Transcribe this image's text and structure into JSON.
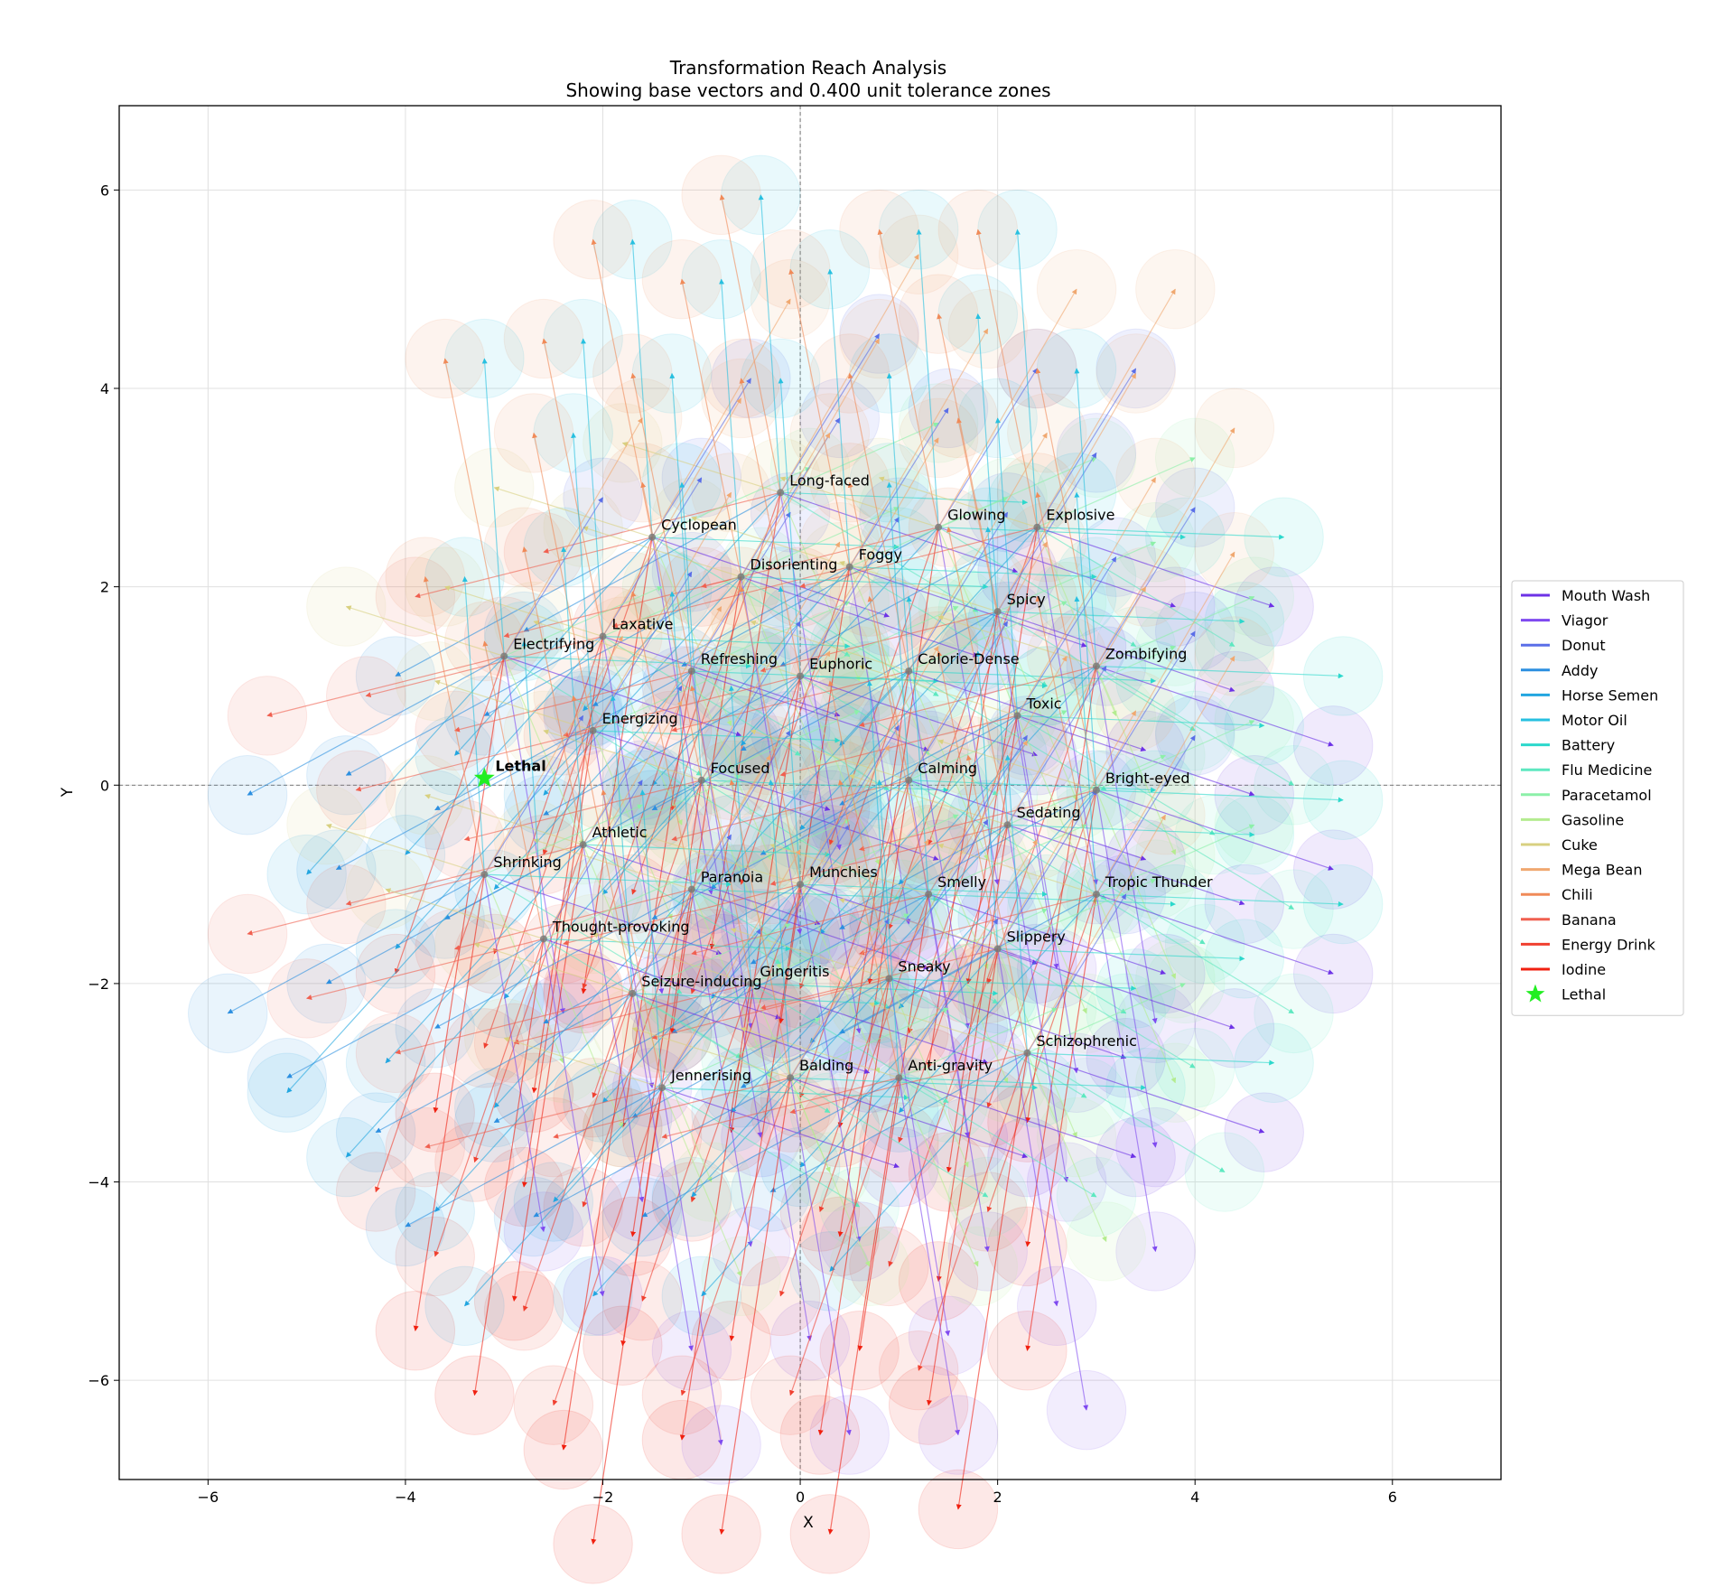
{
  "chart_data": {
    "type": "scatter",
    "title": "Transformation Reach Analysis",
    "subtitle": "Showing base vectors and 0.400 unit tolerance zones",
    "xlabel": "X",
    "ylabel": "Y",
    "xlim": [
      -6.9,
      7.1
    ],
    "ylim": [
      -7.0,
      6.85
    ],
    "xticks": [
      -6,
      -4,
      -2,
      0,
      2,
      4,
      6
    ],
    "yticks": [
      -6,
      -4,
      -2,
      0,
      2,
      4,
      6
    ],
    "tick_labels_x": [
      "−6",
      "−4",
      "−2",
      "0",
      "2",
      "4",
      "6"
    ],
    "tick_labels_y": [
      "−6",
      "−4",
      "−2",
      "0",
      "2",
      "4",
      "6"
    ],
    "grid": true,
    "legend_placement": "right-center",
    "tolerance_radius": 0.4,
    "ingredients": [
      {
        "name": "Mouth Wash",
        "color": "#6d32e6",
        "dx": 2.4,
        "dy": -0.8
      },
      {
        "name": "Viagor",
        "color": "#7f4af0",
        "dx": 0.6,
        "dy": -3.6
      },
      {
        "name": "Donut",
        "color": "#5a6ee8",
        "dx": 1.0,
        "dy": 1.6
      },
      {
        "name": "Addy",
        "color": "#2c8fe0",
        "dx": -2.6,
        "dy": -1.4
      },
      {
        "name": "Horse Semen",
        "color": "#22a6e0",
        "dx": -2.0,
        "dy": -2.2
      },
      {
        "name": "Motor Oil",
        "color": "#27c0e0",
        "dx": -0.2,
        "dy": 3.0
      },
      {
        "name": "Battery",
        "color": "#2cd8cc",
        "dx": 2.5,
        "dy": -0.1
      },
      {
        "name": "Flu Medicine",
        "color": "#5ee8c0",
        "dx": 2.0,
        "dy": -1.2
      },
      {
        "name": "Paracetamol",
        "color": "#8cf0a8",
        "dx": 1.6,
        "dy": 0.7
      },
      {
        "name": "Gasoline",
        "color": "#b4ec90",
        "dx": 0.8,
        "dy": -1.9
      },
      {
        "name": "Cuke",
        "color": "#d8d080",
        "dx": -1.6,
        "dy": 0.5
      },
      {
        "name": "Mega Bean",
        "color": "#f0a870",
        "dx": 1.4,
        "dy": 2.4
      },
      {
        "name": "Chili",
        "color": "#f08a58",
        "dx": -0.6,
        "dy": 3.0
      },
      {
        "name": "Banana",
        "color": "#f06050",
        "dx": -2.4,
        "dy": -0.6
      },
      {
        "name": "Energy Drink",
        "color": "#f04030",
        "dx": -1.1,
        "dy": -3.2
      },
      {
        "name": "Iodine",
        "color": "#f02010",
        "dx": -0.7,
        "dy": -4.6
      }
    ],
    "effects": [
      {
        "name": "Long-faced",
        "x": -0.2,
        "y": 2.95
      },
      {
        "name": "Cyclopean",
        "x": -1.5,
        "y": 2.5
      },
      {
        "name": "Glowing",
        "x": 1.4,
        "y": 2.6
      },
      {
        "name": "Explosive",
        "x": 2.4,
        "y": 2.6
      },
      {
        "name": "Foggy",
        "x": 0.5,
        "y": 2.2
      },
      {
        "name": "Disorienting",
        "x": -0.6,
        "y": 2.1
      },
      {
        "name": "Spicy",
        "x": 2.0,
        "y": 1.75
      },
      {
        "name": "Laxative",
        "x": -2.0,
        "y": 1.5
      },
      {
        "name": "Electrifying",
        "x": -3.0,
        "y": 1.3
      },
      {
        "name": "Refreshing",
        "x": -1.1,
        "y": 1.15
      },
      {
        "name": "Euphoric",
        "x": 0.0,
        "y": 1.1
      },
      {
        "name": "Calorie-Dense",
        "x": 1.1,
        "y": 1.15
      },
      {
        "name": "Zombifying",
        "x": 3.0,
        "y": 1.2
      },
      {
        "name": "Toxic",
        "x": 2.2,
        "y": 0.7
      },
      {
        "name": "Energizing",
        "x": -2.1,
        "y": 0.55
      },
      {
        "name": "Focused",
        "x": -1.0,
        "y": 0.05
      },
      {
        "name": "Calming",
        "x": 1.1,
        "y": 0.05
      },
      {
        "name": "Bright-eyed",
        "x": 3.0,
        "y": -0.05
      },
      {
        "name": "Sedating",
        "x": 2.1,
        "y": -0.4
      },
      {
        "name": "Athletic",
        "x": -2.2,
        "y": -0.6
      },
      {
        "name": "Shrinking",
        "x": -3.2,
        "y": -0.9
      },
      {
        "name": "Paranoia",
        "x": -1.1,
        "y": -1.05
      },
      {
        "name": "Munchies",
        "x": 0.0,
        "y": -1.0
      },
      {
        "name": "Smelly",
        "x": 1.3,
        "y": -1.1
      },
      {
        "name": "Tropic Thunder",
        "x": 3.0,
        "y": -1.1
      },
      {
        "name": "Thought-provoking",
        "x": -2.6,
        "y": -1.55
      },
      {
        "name": "Slippery",
        "x": 2.0,
        "y": -1.65
      },
      {
        "name": "Gingeritis",
        "x": -0.5,
        "y": -2.0
      },
      {
        "name": "Sneaky",
        "x": 0.9,
        "y": -1.95
      },
      {
        "name": "Seizure-inducing",
        "x": -1.7,
        "y": -2.1
      },
      {
        "name": "Schizophrenic",
        "x": 2.3,
        "y": -2.7
      },
      {
        "name": "Jennerising",
        "x": -1.4,
        "y": -3.05
      },
      {
        "name": "Balding",
        "x": -0.1,
        "y": -2.95
      },
      {
        "name": "Anti-gravity",
        "x": 1.0,
        "y": -2.95
      }
    ],
    "lethal": {
      "name": "Lethal",
      "x": -3.2,
      "y": 0.07,
      "color": "#22ee22"
    }
  }
}
